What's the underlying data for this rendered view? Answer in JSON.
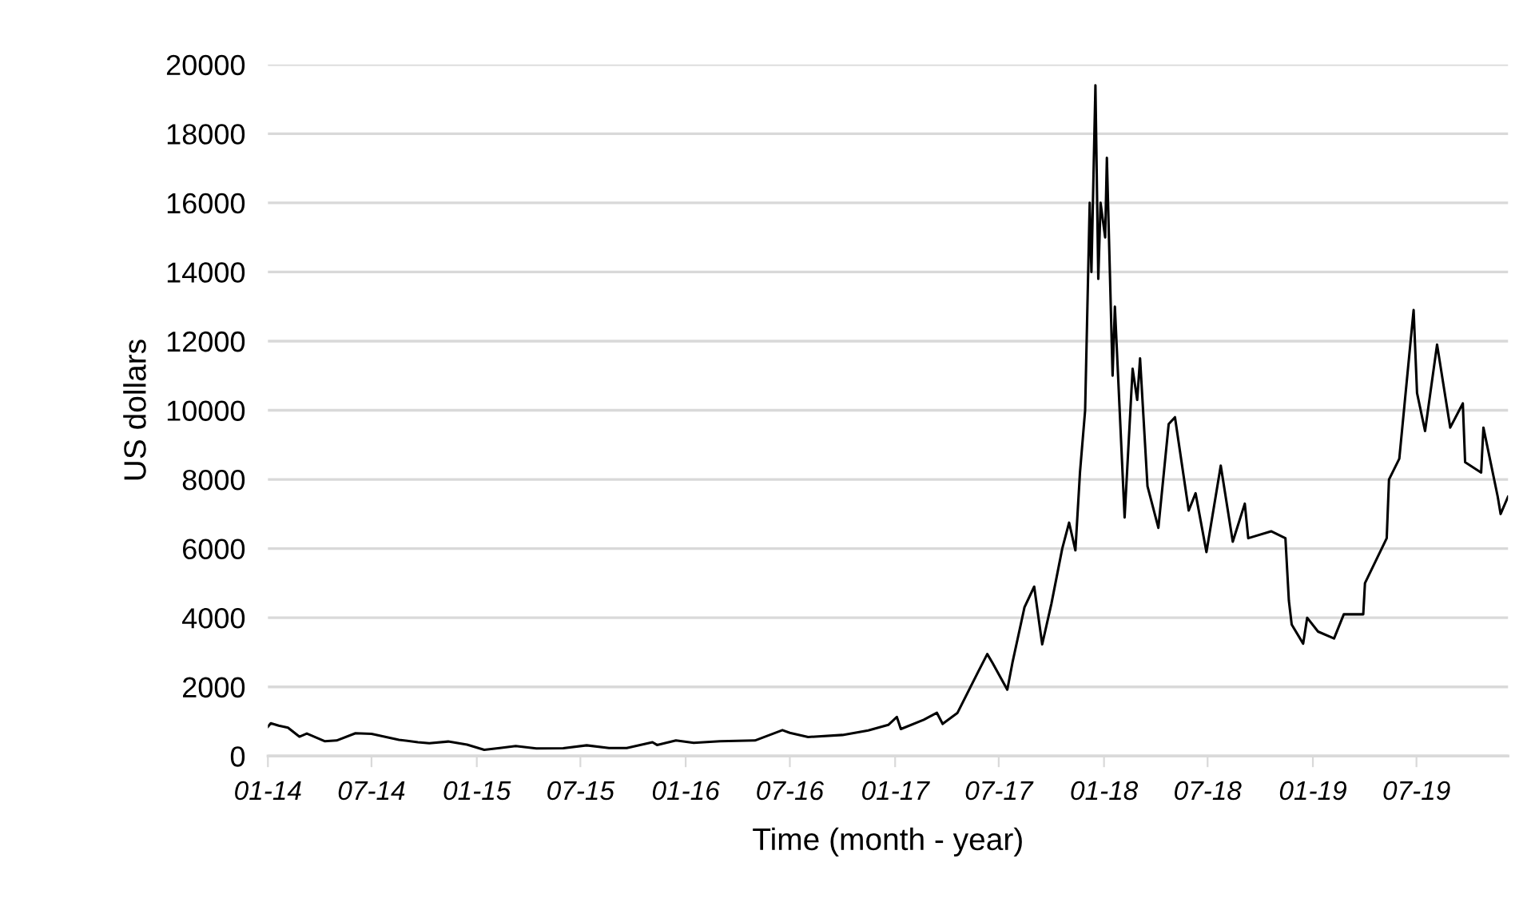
{
  "chart_data": {
    "type": "line",
    "xlabel": "Time (month - year)",
    "ylabel": "US dollars",
    "x": [
      "2014-01-01",
      "2014-01-06",
      "2014-01-20",
      "2014-02-05",
      "2014-02-25",
      "2014-03-10",
      "2014-04-10",
      "2014-05-01",
      "2014-06-03",
      "2014-07-01",
      "2014-08-18",
      "2014-09-20",
      "2014-10-10",
      "2014-11-12",
      "2014-12-15",
      "2015-01-14",
      "2015-02-10",
      "2015-03-10",
      "2015-04-15",
      "2015-06-01",
      "2015-07-12",
      "2015-08-20",
      "2015-09-20",
      "2015-11-04",
      "2015-11-12",
      "2015-12-15",
      "2016-01-15",
      "2016-03-01",
      "2016-05-01",
      "2016-06-18",
      "2016-07-01",
      "2016-08-02",
      "2016-10-01",
      "2016-11-15",
      "2016-12-20",
      "2017-01-04",
      "2017-01-11",
      "2017-02-20",
      "2017-03-15",
      "2017-03-25",
      "2017-04-20",
      "2017-05-25",
      "2017-06-11",
      "2017-06-20",
      "2017-07-16",
      "2017-07-25",
      "2017-08-15",
      "2017-09-01",
      "2017-09-15",
      "2017-10-01",
      "2017-10-20",
      "2017-11-01",
      "2017-11-12",
      "2017-11-20",
      "2017-11-29",
      "2017-12-07",
      "2017-12-10",
      "2017-12-17",
      "2017-12-22",
      "2017-12-26",
      "2018-01-03",
      "2018-01-06",
      "2018-01-16",
      "2018-01-20",
      "2018-02-06",
      "2018-02-20",
      "2018-02-28",
      "2018-03-05",
      "2018-03-18",
      "2018-04-06",
      "2018-04-24",
      "2018-05-05",
      "2018-05-29",
      "2018-06-10",
      "2018-06-29",
      "2018-07-24",
      "2018-08-14",
      "2018-09-04",
      "2018-09-10",
      "2018-10-20",
      "2018-11-14",
      "2018-11-20",
      "2018-11-25",
      "2018-12-15",
      "2018-12-22",
      "2019-01-10",
      "2019-02-07",
      "2019-02-24",
      "2019-03-30",
      "2019-04-02",
      "2019-05-10",
      "2019-05-14",
      "2019-06-01",
      "2019-06-26",
      "2019-07-02",
      "2019-07-16",
      "2019-08-06",
      "2019-08-29",
      "2019-09-20",
      "2019-09-24",
      "2019-10-22",
      "2019-10-26",
      "2019-11-20",
      "2019-11-25",
      "2019-12-08"
    ],
    "series": [
      {
        "color": "#000000",
        "values": [
          850,
          950,
          880,
          820,
          560,
          650,
          430,
          450,
          660,
          640,
          470,
          400,
          370,
          420,
          330,
          180,
          230,
          290,
          220,
          225,
          310,
          230,
          230,
          400,
          320,
          450,
          380,
          430,
          450,
          750,
          670,
          550,
          610,
          740,
          900,
          1130,
          780,
          1050,
          1250,
          930,
          1250,
          2400,
          2950,
          2700,
          1920,
          2700,
          4300,
          4900,
          3230,
          4400,
          6000,
          6750,
          5950,
          8200,
          10000,
          16000,
          14000,
          19400,
          13800,
          16000,
          15000,
          17300,
          11000,
          13000,
          6900,
          11200,
          10300,
          11500,
          7800,
          6600,
          9600,
          9800,
          7100,
          7600,
          5900,
          8400,
          6200,
          7300,
          6300,
          6500,
          6300,
          4500,
          3800,
          3250,
          4000,
          3600,
          3400,
          4100,
          4100,
          5000,
          6300,
          8000,
          8600,
          12900,
          10500,
          9400,
          11900,
          9500,
          10200,
          8500,
          8200,
          9500,
          7500,
          7000,
          7500
        ]
      }
    ],
    "xlim": [
      "2014-01-01",
      "2019-12-08"
    ],
    "xticks": [
      {
        "value": "2014-01-01",
        "label": "01-14"
      },
      {
        "value": "2014-07-01",
        "label": "07-14"
      },
      {
        "value": "2015-01-01",
        "label": "01-15"
      },
      {
        "value": "2015-07-01",
        "label": "07-15"
      },
      {
        "value": "2016-01-01",
        "label": "01-16"
      },
      {
        "value": "2016-07-01",
        "label": "07-16"
      },
      {
        "value": "2017-01-01",
        "label": "01-17"
      },
      {
        "value": "2017-07-01",
        "label": "07-17"
      },
      {
        "value": "2018-01-01",
        "label": "01-18"
      },
      {
        "value": "2018-07-01",
        "label": "07-18"
      },
      {
        "value": "2019-01-01",
        "label": "01-19"
      },
      {
        "value": "2019-07-01",
        "label": "07-19"
      }
    ],
    "ylim": [
      0,
      20000
    ],
    "yticks": [
      0,
      2000,
      4000,
      6000,
      8000,
      10000,
      12000,
      14000,
      16000,
      18000,
      20000
    ],
    "grid": "y",
    "marker": "none",
    "line_style": "solid"
  }
}
